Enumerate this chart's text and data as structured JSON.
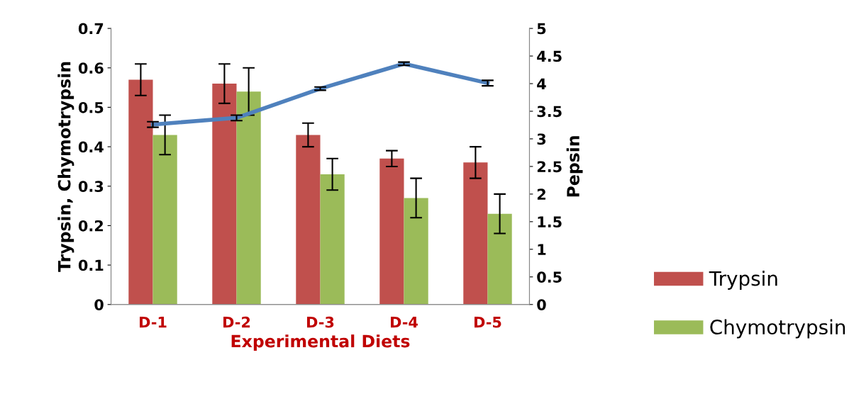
{
  "chart_data": {
    "type": "bar",
    "xlabel": "Experimental Diets",
    "ylabel": "Trypsin, Chymotrypsin",
    "y2label": "Pepsin",
    "categories": [
      "D-1",
      "D-2",
      "D-3",
      "D-4",
      "D-5"
    ],
    "series": [
      {
        "name": "Trypsin",
        "color": "#c0504d",
        "values": [
          0.57,
          0.56,
          0.43,
          0.37,
          0.36
        ],
        "errors": [
          0.04,
          0.05,
          0.03,
          0.02,
          0.04
        ]
      },
      {
        "name": "Chymotrypsin",
        "color": "#9bbb59",
        "values": [
          0.43,
          0.54,
          0.33,
          0.27,
          0.23
        ],
        "errors": [
          0.05,
          0.06,
          0.04,
          0.05,
          0.05
        ]
      },
      {
        "type": "line",
        "axis": "y2",
        "color": "#4f81bd",
        "values": [
          3.26,
          3.38,
          3.91,
          4.36,
          4.01
        ],
        "errors": [
          0.05,
          0.05,
          0.03,
          0.03,
          0.05
        ]
      }
    ],
    "ylim": [
      0,
      0.7
    ],
    "yticks": [
      0,
      0.1,
      0.2,
      0.3,
      0.4,
      0.5,
      0.6,
      0.7
    ],
    "y2lim": [
      0,
      5
    ],
    "y2ticks": [
      0,
      0.5,
      1,
      1.5,
      2,
      2.5,
      3,
      3.5,
      4,
      4.5,
      5
    ],
    "legend": "right",
    "grid": false,
    "marker": "none"
  }
}
